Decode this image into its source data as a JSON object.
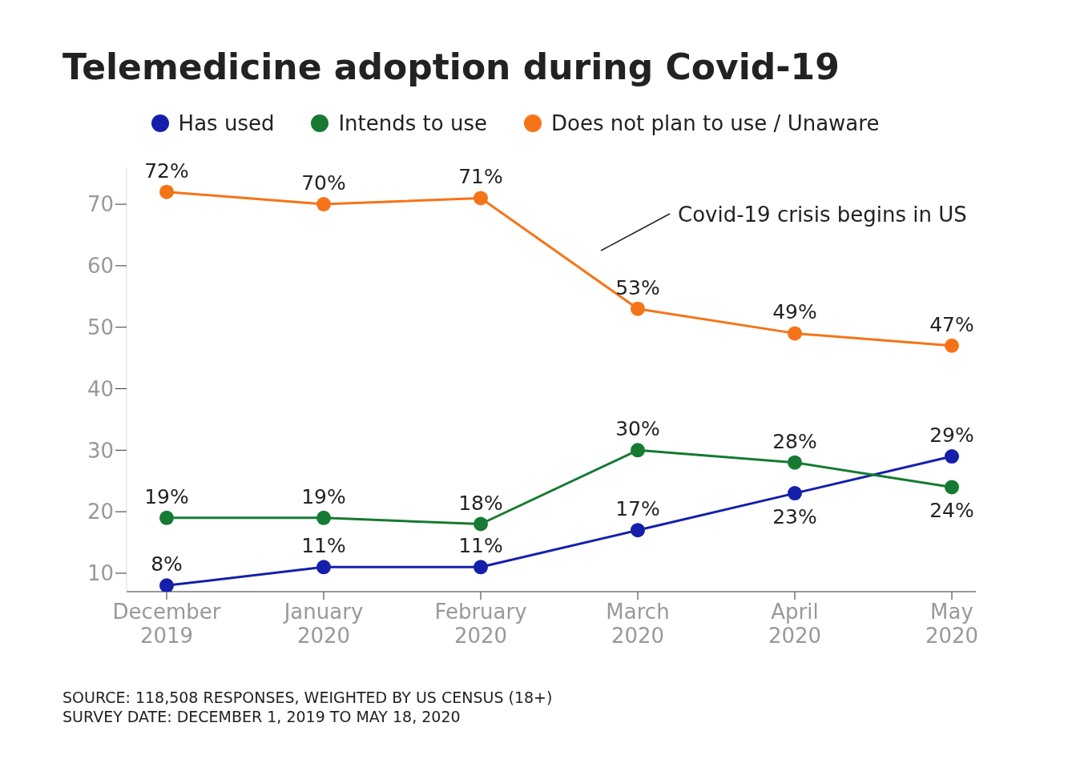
{
  "chart_data": {
    "type": "line",
    "title": "Telemedicine adoption during Covid-19",
    "categories": [
      "December 2019",
      "January 2020",
      "February 2020",
      "March 2020",
      "April 2020",
      "May 2020"
    ],
    "series": [
      {
        "name": "Has used",
        "color": "#1420aa",
        "values": [
          8,
          11,
          11,
          17,
          23,
          29
        ],
        "value_labels": [
          "8%",
          "11%",
          "11%",
          "17%",
          "23%",
          "29%"
        ]
      },
      {
        "name": "Intends to use",
        "color": "#167a32",
        "values": [
          19,
          19,
          18,
          30,
          28,
          24
        ],
        "value_labels": [
          "19%",
          "19%",
          "18%",
          "30%",
          "28%",
          "24%"
        ]
      },
      {
        "name": "Does not plan to use / Unaware",
        "color": "#f57418",
        "values": [
          72,
          70,
          71,
          53,
          49,
          47
        ],
        "value_labels": [
          "72%",
          "70%",
          "71%",
          "53%",
          "49%",
          "47%"
        ]
      }
    ],
    "ylim": [
      7,
      76
    ],
    "yticks": [
      10,
      20,
      30,
      40,
      50,
      60,
      70
    ],
    "grid": false,
    "legend": "top",
    "marker": "circle",
    "line_style": "solid",
    "annotations": [
      "Covid-19 crisis begins in US",
      "SOURCE: 118,508 RESPONSES, WEIGHTED BY US CENSUS (18+)",
      "SURVEY DATE: DECEMBER 1, 2019 TO MAY 18, 2020"
    ]
  }
}
